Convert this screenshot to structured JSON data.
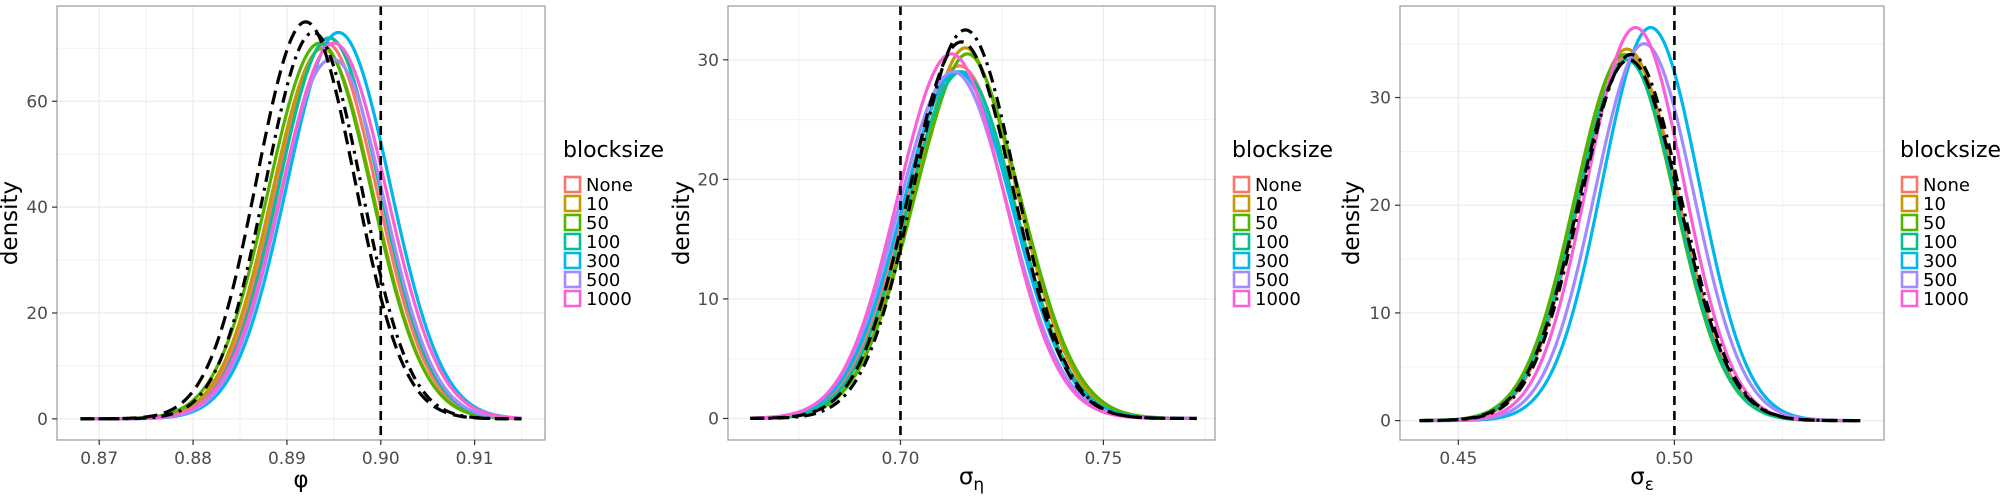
{
  "legend": {
    "title": "blocksize",
    "entries": [
      "None",
      "10",
      "50",
      "100",
      "300",
      "500",
      "1000"
    ],
    "colors": [
      "#F8766D",
      "#C49A00",
      "#53B400",
      "#00C094",
      "#00B6EB",
      "#A58AFF",
      "#FB61D7"
    ]
  },
  "chart_data": [
    {
      "type": "line",
      "title": "",
      "xlabel": "φ",
      "ylabel": "density",
      "xlim": [
        0.8655,
        0.9175
      ],
      "ylim": [
        -4,
        78
      ],
      "xticks": [
        0.87,
        0.88,
        0.89,
        0.9,
        0.91
      ],
      "xtick_labels": [
        "0.87",
        "0.88",
        "0.89",
        "0.90",
        "0.91"
      ],
      "yticks": [
        0,
        20,
        40,
        60
      ],
      "ytick_labels": [
        "0",
        "20",
        "40",
        "60"
      ],
      "x_range": [
        0.868,
        0.915
      ],
      "truth": 0.9,
      "series": [
        {
          "name": "None",
          "mean": 0.8942,
          "sd": 0.0054,
          "peak": 71,
          "bump": 0
        },
        {
          "name": "10",
          "mean": 0.8938,
          "sd": 0.0054,
          "peak": 70,
          "bump": 0
        },
        {
          "name": "50",
          "mean": 0.8935,
          "sd": 0.0055,
          "peak": 71,
          "bump": 0
        },
        {
          "name": "100",
          "mean": 0.8945,
          "sd": 0.0054,
          "peak": 72,
          "bump": 0
        },
        {
          "name": "300",
          "mean": 0.8955,
          "sd": 0.0055,
          "peak": 73,
          "bump": 0
        },
        {
          "name": "500",
          "mean": 0.8948,
          "sd": 0.0054,
          "peak": 70,
          "bump": -2
        },
        {
          "name": "1000",
          "mean": 0.895,
          "sd": 0.0056,
          "peak": 71,
          "bump": 0
        }
      ],
      "reference_lines": [
        {
          "name": "dashed",
          "mean": 0.892,
          "sd": 0.0052,
          "peak": 75
        },
        {
          "name": "dotdash",
          "mean": 0.8928,
          "sd": 0.0051,
          "peak": 73
        }
      ]
    },
    {
      "type": "line",
      "title": "",
      "xlabel": "σ_η",
      "ylabel": "density",
      "xlim": [
        0.6575,
        0.7775
      ],
      "ylim": [
        -1.8,
        34.5
      ],
      "xticks": [
        0.7,
        0.75
      ],
      "xtick_labels": [
        "0.70",
        "0.75"
      ],
      "yticks": [
        0,
        10,
        20,
        30
      ],
      "ytick_labels": [
        "0",
        "10",
        "20",
        "30"
      ],
      "x_range": [
        0.663,
        0.773
      ],
      "truth": 0.7,
      "series": [
        {
          "name": "None",
          "mean": 0.7145,
          "sd": 0.0135,
          "peak": 29.5,
          "bump": 0
        },
        {
          "name": "10",
          "mean": 0.716,
          "sd": 0.0133,
          "peak": 30.0,
          "bump": 1
        },
        {
          "name": "50",
          "mean": 0.7165,
          "sd": 0.0135,
          "peak": 29.5,
          "bump": 1
        },
        {
          "name": "100",
          "mean": 0.715,
          "sd": 0.0134,
          "peak": 29.0,
          "bump": 0
        },
        {
          "name": "300",
          "mean": 0.714,
          "sd": 0.0136,
          "peak": 29.0,
          "bump": 0
        },
        {
          "name": "500",
          "mean": 0.713,
          "sd": 0.0135,
          "peak": 29.0,
          "bump": 0
        },
        {
          "name": "1000",
          "mean": 0.7125,
          "sd": 0.0132,
          "peak": 30.5,
          "bump": 0
        }
      ],
      "reference_lines": [
        {
          "name": "dashed",
          "mean": 0.715,
          "sd": 0.0128,
          "peak": 31.5
        },
        {
          "name": "dotdash",
          "mean": 0.716,
          "sd": 0.0125,
          "peak": 32.5
        }
      ]
    },
    {
      "type": "line",
      "title": "",
      "xlabel": "σ_ε",
      "ylabel": "density",
      "xlim": [
        0.4365,
        0.5485
      ],
      "ylim": [
        -1.8,
        38.5
      ],
      "xticks": [
        0.45,
        0.5
      ],
      "xtick_labels": [
        "0.45",
        "0.50"
      ],
      "yticks": [
        0,
        10,
        20,
        30
      ],
      "ytick_labels": [
        "0",
        "10",
        "20",
        "30"
      ],
      "x_range": [
        0.441,
        0.543
      ],
      "truth": 0.5,
      "series": [
        {
          "name": "None",
          "mean": 0.4895,
          "sd": 0.0115,
          "peak": 34.0,
          "bump": 0
        },
        {
          "name": "10",
          "mean": 0.489,
          "sd": 0.0115,
          "peak": 34.5,
          "bump": 0
        },
        {
          "name": "50",
          "mean": 0.4885,
          "sd": 0.0116,
          "peak": 34.0,
          "bump": 0
        },
        {
          "name": "100",
          "mean": 0.489,
          "sd": 0.0115,
          "peak": 33.5,
          "bump": 0
        },
        {
          "name": "300",
          "mean": 0.4945,
          "sd": 0.0112,
          "peak": 36.5,
          "bump": 0
        },
        {
          "name": "500",
          "mean": 0.493,
          "sd": 0.0114,
          "peak": 35.0,
          "bump": 0
        },
        {
          "name": "1000",
          "mean": 0.491,
          "sd": 0.0112,
          "peak": 36.5,
          "bump": 0
        }
      ],
      "reference_lines": [
        {
          "name": "dashed",
          "mean": 0.4895,
          "sd": 0.0117,
          "peak": 33.5
        },
        {
          "name": "dotdash",
          "mean": 0.49,
          "sd": 0.0116,
          "peak": 34.0
        }
      ]
    }
  ]
}
